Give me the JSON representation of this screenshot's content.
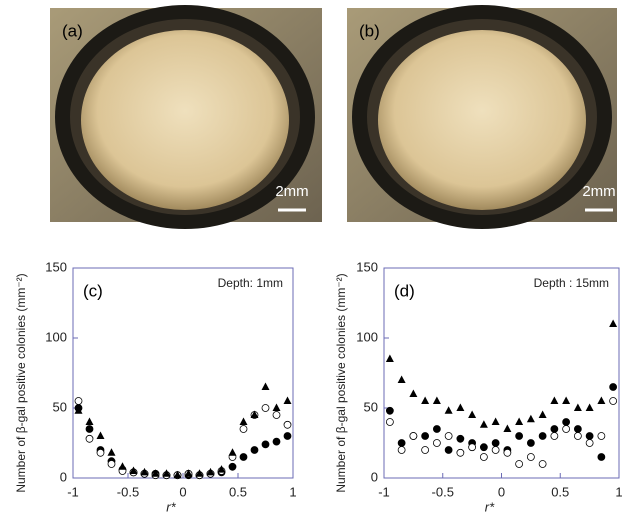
{
  "panels": [
    {
      "label": "(a)",
      "scale": "2mm"
    },
    {
      "label": "(b)",
      "scale": "2mm"
    }
  ],
  "chart_data": [
    {
      "type": "scatter",
      "label": "(c)",
      "annotation": "Depth: 1mm",
      "xlabel": "r*",
      "ylabel": "Number of  β-gal positive colonies  (mm⁻²)",
      "x": [
        -0.95,
        -0.85,
        -0.75,
        -0.65,
        -0.55,
        -0.45,
        -0.35,
        -0.25,
        -0.15,
        -0.05,
        0.05,
        0.15,
        0.25,
        0.35,
        0.45,
        0.55,
        0.65,
        0.75,
        0.85,
        0.95
      ],
      "series": [
        {
          "marker": "circle-filled",
          "color": "#000000",
          "values": [
            50,
            35,
            20,
            12,
            6,
            4,
            3,
            3,
            2,
            2,
            2,
            2,
            3,
            4,
            8,
            15,
            20,
            24,
            26,
            30
          ]
        },
        {
          "marker": "circle-open",
          "color": "#000000",
          "values": [
            55,
            28,
            18,
            10,
            5,
            4,
            3,
            2,
            2,
            2,
            3,
            2,
            3,
            5,
            15,
            35,
            45,
            50,
            45,
            38
          ]
        },
        {
          "marker": "triangle",
          "color": "#000000",
          "values": [
            48,
            40,
            30,
            18,
            8,
            5,
            4,
            3,
            3,
            2,
            3,
            3,
            4,
            6,
            18,
            40,
            45,
            65,
            50,
            55
          ]
        }
      ],
      "xlim": [
        -1,
        1
      ],
      "ylim": [
        0,
        150
      ],
      "xticks": [
        -1,
        -0.5,
        0,
        0.5,
        1
      ],
      "yticks": [
        0,
        50,
        100,
        150
      ]
    },
    {
      "type": "scatter",
      "label": "(d)",
      "annotation": "Depth : 15mm",
      "xlabel": "r*",
      "ylabel": "Number of  β-gal positive colonies  (mm⁻²)",
      "x": [
        -0.95,
        -0.85,
        -0.75,
        -0.65,
        -0.55,
        -0.45,
        -0.35,
        -0.25,
        -0.15,
        -0.05,
        0.05,
        0.15,
        0.25,
        0.35,
        0.45,
        0.55,
        0.65,
        0.75,
        0.85,
        0.95
      ],
      "series": [
        {
          "marker": "circle-filled",
          "color": "#000000",
          "values": [
            48,
            25,
            30,
            30,
            35,
            20,
            28,
            25,
            22,
            25,
            20,
            30,
            25,
            30,
            35,
            40,
            35,
            30,
            15,
            65
          ]
        },
        {
          "marker": "circle-open",
          "color": "#000000",
          "values": [
            40,
            20,
            30,
            20,
            25,
            30,
            18,
            22,
            15,
            20,
            18,
            10,
            15,
            10,
            30,
            35,
            30,
            25,
            30,
            55
          ]
        },
        {
          "marker": "triangle",
          "color": "#000000",
          "values": [
            85,
            70,
            60,
            55,
            55,
            48,
            50,
            45,
            38,
            40,
            35,
            40,
            42,
            45,
            55,
            55,
            50,
            50,
            55,
            110
          ]
        }
      ],
      "xlim": [
        -1,
        1
      ],
      "ylim": [
        0,
        150
      ],
      "xticks": [
        -1,
        -0.5,
        0,
        0.5,
        1
      ],
      "yticks": [
        0,
        50,
        100,
        150
      ]
    }
  ]
}
